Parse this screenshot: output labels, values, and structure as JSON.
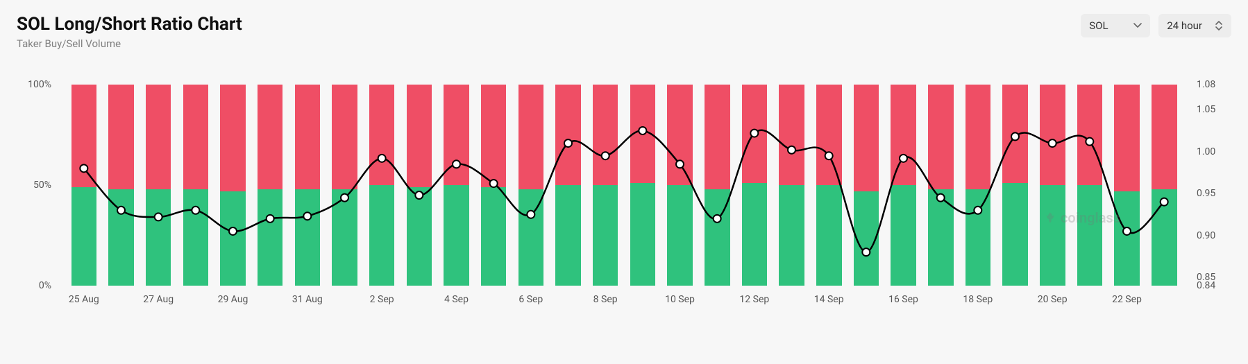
{
  "header": {
    "title": "SOL Long/Short Ratio Chart",
    "subtitle": "Taker Buy/Sell Volume"
  },
  "controls": {
    "symbol_dropdown": {
      "value": "SOL"
    },
    "interval_dropdown": {
      "value": "24 hour"
    }
  },
  "watermark": {
    "text": "coinglass"
  },
  "chart": {
    "type": "bar+line",
    "background_color": "#f7f7f7",
    "bar_top_color": "#ef4e65",
    "bar_bot_color": "#2fc27d",
    "line_color": "#000000",
    "line_width": 2.5,
    "marker_fill": "#ffffff",
    "marker_stroke": "#000000",
    "marker_radius": 5.5,
    "marker_stroke_width": 2,
    "bar_width_ratio": 0.68,
    "left_axis": {
      "label_color": "#555555",
      "fontsize": 14,
      "min": 0,
      "max": 100,
      "ticks": [
        {
          "v": 0,
          "label": "0%"
        },
        {
          "v": 50,
          "label": "50%"
        },
        {
          "v": 100,
          "label": "100%"
        }
      ]
    },
    "right_axis": {
      "label_color": "#555555",
      "fontsize": 14,
      "min": 0.84,
      "max": 1.08,
      "ticks": [
        {
          "v": 0.84,
          "label": "0.84"
        },
        {
          "v": 0.85,
          "label": "0.85"
        },
        {
          "v": 0.9,
          "label": "0.90"
        },
        {
          "v": 0.95,
          "label": "0.95"
        },
        {
          "v": 1.0,
          "label": "1.00"
        },
        {
          "v": 1.05,
          "label": "1.05"
        },
        {
          "v": 1.08,
          "label": "1.08"
        }
      ]
    },
    "x_tick_every": 2,
    "data": [
      {
        "x": "25 Aug",
        "green_pct": 49,
        "ratio": 0.98
      },
      {
        "x": "26 Aug",
        "green_pct": 48,
        "ratio": 0.93
      },
      {
        "x": "27 Aug",
        "green_pct": 48,
        "ratio": 0.922
      },
      {
        "x": "28 Aug",
        "green_pct": 48,
        "ratio": 0.93
      },
      {
        "x": "29 Aug",
        "green_pct": 47,
        "ratio": 0.905
      },
      {
        "x": "30 Aug",
        "green_pct": 48,
        "ratio": 0.92
      },
      {
        "x": "31 Aug",
        "green_pct": 48,
        "ratio": 0.923
      },
      {
        "x": "1 Sep",
        "green_pct": 48,
        "ratio": 0.945
      },
      {
        "x": "2 Sep",
        "green_pct": 50,
        "ratio": 0.992
      },
      {
        "x": "3 Sep",
        "green_pct": 49,
        "ratio": 0.948
      },
      {
        "x": "4 Sep",
        "green_pct": 50,
        "ratio": 0.985
      },
      {
        "x": "5 Sep",
        "green_pct": 49,
        "ratio": 0.962
      },
      {
        "x": "6 Sep",
        "green_pct": 48,
        "ratio": 0.925
      },
      {
        "x": "7 Sep",
        "green_pct": 50,
        "ratio": 1.01
      },
      {
        "x": "8 Sep",
        "green_pct": 50,
        "ratio": 0.995
      },
      {
        "x": "9 Sep",
        "green_pct": 51,
        "ratio": 1.025
      },
      {
        "x": "10 Sep",
        "green_pct": 50,
        "ratio": 0.985
      },
      {
        "x": "11 Sep",
        "green_pct": 48,
        "ratio": 0.92
      },
      {
        "x": "12 Sep",
        "green_pct": 51,
        "ratio": 1.022
      },
      {
        "x": "13 Sep",
        "green_pct": 50,
        "ratio": 1.002
      },
      {
        "x": "14 Sep",
        "green_pct": 50,
        "ratio": 0.995
      },
      {
        "x": "15 Sep",
        "green_pct": 47,
        "ratio": 0.88
      },
      {
        "x": "16 Sep",
        "green_pct": 50,
        "ratio": 0.992
      },
      {
        "x": "17 Sep",
        "green_pct": 48,
        "ratio": 0.945
      },
      {
        "x": "18 Sep",
        "green_pct": 48,
        "ratio": 0.93
      },
      {
        "x": "19 Sep",
        "green_pct": 51,
        "ratio": 1.018
      },
      {
        "x": "20 Sep",
        "green_pct": 50,
        "ratio": 1.01
      },
      {
        "x": "21 Sep",
        "green_pct": 50,
        "ratio": 1.012
      },
      {
        "x": "22 Sep",
        "green_pct": 47,
        "ratio": 0.905
      },
      {
        "x": "23 Sep",
        "green_pct": 48,
        "ratio": 0.94
      }
    ]
  }
}
